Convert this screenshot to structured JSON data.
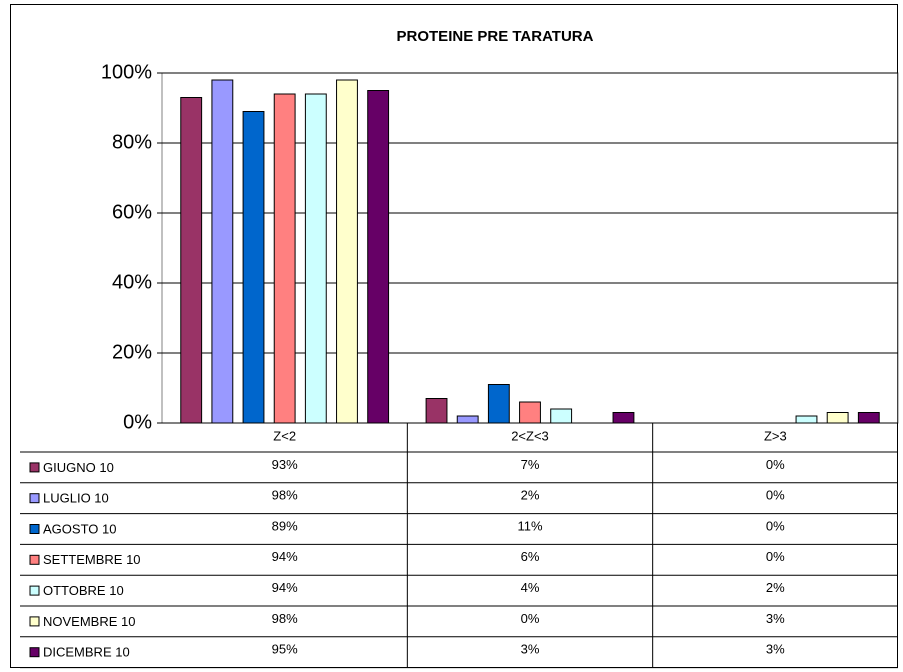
{
  "chart_data": {
    "type": "bar",
    "title": "PROTEINE PRE TARATURA",
    "categories": [
      "Z<2",
      "2<Z<3",
      "Z>3"
    ],
    "series": [
      {
        "name": "GIUGNO 10",
        "color": "#993366",
        "values": [
          93,
          7,
          0
        ],
        "value_labels": [
          "93%",
          "7%",
          "0%"
        ]
      },
      {
        "name": "LUGLIO 10",
        "color": "#9999ff",
        "values": [
          98,
          2,
          0
        ],
        "value_labels": [
          "98%",
          "2%",
          "0%"
        ]
      },
      {
        "name": "AGOSTO 10",
        "color": "#0066cc",
        "values": [
          89,
          11,
          0
        ],
        "value_labels": [
          "89%",
          "11%",
          "0%"
        ]
      },
      {
        "name": "SETTEMBRE 10",
        "color": "#ff8080",
        "values": [
          94,
          6,
          0
        ],
        "value_labels": [
          "94%",
          "6%",
          "0%"
        ]
      },
      {
        "name": "OTTOBRE 10",
        "color": "#ccffff",
        "values": [
          94,
          4,
          2
        ],
        "value_labels": [
          "94%",
          "4%",
          "2%"
        ]
      },
      {
        "name": "NOVEMBRE 10",
        "color": "#ffffcc",
        "values": [
          98,
          0,
          3
        ],
        "value_labels": [
          "98%",
          "0%",
          "3%"
        ]
      },
      {
        "name": "DICEMBRE 10",
        "color": "#660066",
        "values": [
          95,
          3,
          3
        ],
        "value_labels": [
          "95%",
          "3%",
          "3%"
        ]
      }
    ],
    "ylim": [
      0,
      100
    ],
    "yticks": [
      {
        "value": 0,
        "label": "0%"
      },
      {
        "value": 20,
        "label": "20%"
      },
      {
        "value": 40,
        "label": "40%"
      },
      {
        "value": 60,
        "label": "60%"
      },
      {
        "value": 80,
        "label": "80%"
      },
      {
        "value": 100,
        "label": "100%"
      }
    ],
    "grid": true,
    "title_color": "#339966"
  }
}
